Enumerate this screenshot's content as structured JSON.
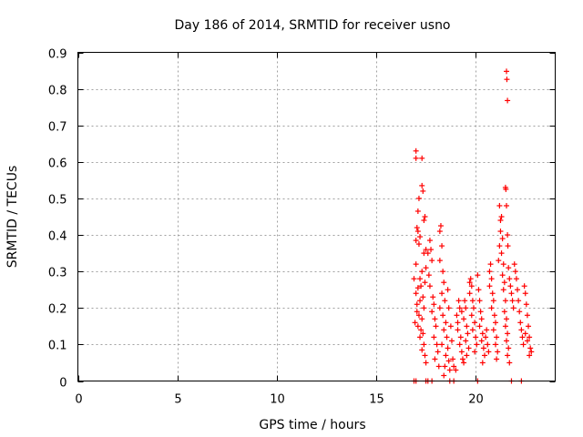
{
  "chart_data": {
    "type": "scatter",
    "title": "Day 186 of 2014, SRMTID for receiver usno",
    "xlabel": "GPS time / hours",
    "ylabel": "SRMTID / TECUs",
    "xlim": [
      0,
      24
    ],
    "ylim": [
      0,
      0.9
    ],
    "xticks": [
      0,
      5,
      10,
      15,
      20
    ],
    "xtick_labels": [
      "0",
      "5",
      "10",
      "15",
      "20"
    ],
    "yticks": [
      0,
      0.1,
      0.2,
      0.3,
      0.4,
      0.5,
      0.6,
      0.7,
      0.8,
      0.9
    ],
    "ytick_labels": [
      "0",
      "0.1",
      "0.2",
      "0.3",
      "0.4",
      "0.5",
      "0.6",
      "0.7",
      "0.8",
      "0.9"
    ],
    "grid": true,
    "marker": "+",
    "color": "#ff0000",
    "series": [
      {
        "name": "SRMTID",
        "points": [
          [
            16.9,
            0.0
          ],
          [
            17.0,
            0.0
          ],
          [
            17.5,
            0.0
          ],
          [
            17.6,
            0.0
          ],
          [
            17.8,
            0.0
          ],
          [
            18.7,
            0.0
          ],
          [
            18.9,
            0.0
          ],
          [
            20.1,
            0.0
          ],
          [
            21.8,
            0.0
          ],
          [
            22.3,
            0.0
          ],
          [
            17.0,
            0.63
          ],
          [
            17.0,
            0.61
          ],
          [
            17.3,
            0.61
          ],
          [
            17.3,
            0.535
          ],
          [
            17.35,
            0.52
          ],
          [
            17.15,
            0.5
          ],
          [
            17.1,
            0.465
          ],
          [
            17.45,
            0.45
          ],
          [
            17.4,
            0.44
          ],
          [
            17.05,
            0.42
          ],
          [
            17.1,
            0.41
          ],
          [
            17.2,
            0.395
          ],
          [
            17.0,
            0.385
          ],
          [
            17.15,
            0.375
          ],
          [
            17.5,
            0.36
          ],
          [
            17.4,
            0.35
          ],
          [
            17.0,
            0.32
          ],
          [
            16.9,
            0.28
          ],
          [
            17.2,
            0.28
          ],
          [
            17.3,
            0.3
          ],
          [
            17.25,
            0.26
          ],
          [
            17.1,
            0.255
          ],
          [
            17.0,
            0.24
          ],
          [
            17.2,
            0.22
          ],
          [
            17.4,
            0.2
          ],
          [
            17.05,
            0.19
          ],
          [
            17.15,
            0.18
          ],
          [
            17.3,
            0.17
          ],
          [
            16.95,
            0.16
          ],
          [
            17.1,
            0.15
          ],
          [
            17.25,
            0.14
          ],
          [
            17.35,
            0.13
          ],
          [
            17.2,
            0.12
          ],
          [
            17.4,
            0.1
          ],
          [
            17.3,
            0.085
          ],
          [
            17.45,
            0.07
          ],
          [
            17.5,
            0.05
          ],
          [
            17.05,
            0.21
          ],
          [
            17.35,
            0.23
          ],
          [
            17.45,
            0.27
          ],
          [
            17.5,
            0.31
          ],
          [
            17.6,
            0.35
          ],
          [
            17.7,
            0.385
          ],
          [
            17.75,
            0.36
          ],
          [
            17.8,
            0.33
          ],
          [
            17.65,
            0.29
          ],
          [
            17.7,
            0.26
          ],
          [
            17.85,
            0.23
          ],
          [
            17.9,
            0.21
          ],
          [
            17.8,
            0.19
          ],
          [
            17.95,
            0.17
          ],
          [
            18.0,
            0.15
          ],
          [
            17.9,
            0.12
          ],
          [
            18.05,
            0.1
          ],
          [
            18.1,
            0.08
          ],
          [
            17.95,
            0.06
          ],
          [
            18.15,
            0.04
          ],
          [
            18.2,
            0.41
          ],
          [
            18.25,
            0.425
          ],
          [
            18.3,
            0.37
          ],
          [
            18.2,
            0.33
          ],
          [
            18.35,
            0.3
          ],
          [
            18.4,
            0.27
          ],
          [
            18.3,
            0.24
          ],
          [
            18.45,
            0.22
          ],
          [
            18.2,
            0.2
          ],
          [
            18.35,
            0.18
          ],
          [
            18.5,
            0.16
          ],
          [
            18.4,
            0.14
          ],
          [
            18.55,
            0.12
          ],
          [
            18.3,
            0.1
          ],
          [
            18.6,
            0.09
          ],
          [
            18.5,
            0.07
          ],
          [
            18.65,
            0.055
          ],
          [
            18.45,
            0.04
          ],
          [
            18.7,
            0.03
          ],
          [
            18.4,
            0.015
          ],
          [
            18.6,
            0.25
          ],
          [
            18.65,
            0.2
          ],
          [
            18.75,
            0.15
          ],
          [
            18.8,
            0.11
          ],
          [
            18.85,
            0.06
          ],
          [
            18.9,
            0.04
          ],
          [
            19.0,
            0.03
          ],
          [
            19.05,
            0.18
          ],
          [
            19.1,
            0.16
          ],
          [
            19.15,
            0.22
          ],
          [
            19.2,
            0.2
          ],
          [
            19.1,
            0.14
          ],
          [
            19.25,
            0.12
          ],
          [
            19.2,
            0.1
          ],
          [
            19.3,
            0.08
          ],
          [
            19.35,
            0.06
          ],
          [
            19.4,
            0.05
          ],
          [
            19.3,
            0.19
          ],
          [
            19.45,
            0.22
          ],
          [
            19.5,
            0.2
          ],
          [
            19.4,
            0.17
          ],
          [
            19.55,
            0.15
          ],
          [
            19.6,
            0.13
          ],
          [
            19.5,
            0.11
          ],
          [
            19.65,
            0.09
          ],
          [
            19.55,
            0.07
          ],
          [
            19.7,
            0.27
          ],
          [
            19.75,
            0.28
          ],
          [
            19.8,
            0.26
          ],
          [
            19.7,
            0.24
          ],
          [
            19.85,
            0.22
          ],
          [
            19.9,
            0.2
          ],
          [
            19.8,
            0.18
          ],
          [
            19.95,
            0.16
          ],
          [
            19.85,
            0.14
          ],
          [
            20.0,
            0.12
          ],
          [
            20.05,
            0.1
          ],
          [
            19.95,
            0.08
          ],
          [
            20.1,
            0.29
          ],
          [
            20.15,
            0.25
          ],
          [
            20.2,
            0.22
          ],
          [
            20.25,
            0.19
          ],
          [
            20.3,
            0.17
          ],
          [
            20.2,
            0.15
          ],
          [
            20.35,
            0.13
          ],
          [
            20.3,
            0.11
          ],
          [
            20.4,
            0.09
          ],
          [
            20.45,
            0.07
          ],
          [
            20.35,
            0.05
          ],
          [
            20.5,
            0.12
          ],
          [
            20.55,
            0.14
          ],
          [
            20.6,
            0.1
          ],
          [
            20.65,
            0.08
          ],
          [
            20.7,
            0.3
          ],
          [
            20.75,
            0.32
          ],
          [
            20.8,
            0.28
          ],
          [
            20.7,
            0.26
          ],
          [
            20.85,
            0.24
          ],
          [
            20.9,
            0.22
          ],
          [
            20.8,
            0.2
          ],
          [
            20.95,
            0.18
          ],
          [
            21.0,
            0.16
          ],
          [
            20.9,
            0.14
          ],
          [
            21.05,
            0.12
          ],
          [
            21.0,
            0.1
          ],
          [
            21.1,
            0.08
          ],
          [
            21.05,
            0.06
          ],
          [
            21.15,
            0.33
          ],
          [
            21.2,
            0.37
          ],
          [
            21.25,
            0.41
          ],
          [
            21.3,
            0.45
          ],
          [
            21.2,
            0.48
          ],
          [
            21.25,
            0.44
          ],
          [
            21.35,
            0.39
          ],
          [
            21.3,
            0.35
          ],
          [
            21.4,
            0.32
          ],
          [
            21.35,
            0.29
          ],
          [
            21.45,
            0.27
          ],
          [
            21.4,
            0.25
          ],
          [
            21.5,
            0.22
          ],
          [
            21.45,
            0.19
          ],
          [
            21.55,
            0.17
          ],
          [
            21.5,
            0.15
          ],
          [
            21.6,
            0.13
          ],
          [
            21.55,
            0.11
          ],
          [
            21.65,
            0.09
          ],
          [
            21.6,
            0.07
          ],
          [
            21.7,
            0.05
          ],
          [
            21.5,
            0.53
          ],
          [
            21.52,
            0.525
          ],
          [
            21.55,
            0.48
          ],
          [
            21.6,
            0.4
          ],
          [
            21.62,
            0.37
          ],
          [
            21.55,
            0.848
          ],
          [
            21.57,
            0.826
          ],
          [
            21.6,
            0.768
          ],
          [
            21.65,
            0.31
          ],
          [
            21.7,
            0.28
          ],
          [
            21.75,
            0.26
          ],
          [
            21.8,
            0.24
          ],
          [
            21.85,
            0.22
          ],
          [
            21.9,
            0.2
          ],
          [
            21.95,
            0.32
          ],
          [
            22.0,
            0.3
          ],
          [
            22.05,
            0.28
          ],
          [
            22.1,
            0.25
          ],
          [
            22.15,
            0.22
          ],
          [
            22.2,
            0.19
          ],
          [
            22.25,
            0.16
          ],
          [
            22.3,
            0.14
          ],
          [
            22.35,
            0.12
          ],
          [
            22.4,
            0.1
          ],
          [
            22.45,
            0.26
          ],
          [
            22.5,
            0.24
          ],
          [
            22.55,
            0.21
          ],
          [
            22.6,
            0.18
          ],
          [
            22.65,
            0.15
          ],
          [
            22.7,
            0.12
          ],
          [
            22.75,
            0.09
          ],
          [
            22.7,
            0.07
          ],
          [
            22.6,
            0.11
          ],
          [
            22.5,
            0.13
          ],
          [
            22.8,
            0.08
          ]
        ]
      }
    ]
  }
}
